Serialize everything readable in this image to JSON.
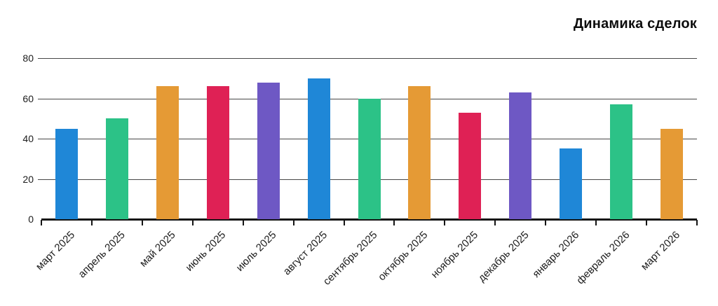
{
  "header": {
    "title": "Динамика сделок"
  },
  "chart_data": {
    "type": "bar",
    "title": "Динамика сделок",
    "categories": [
      "март 2025",
      "апрель 2025",
      "май 2025",
      "июнь 2025",
      "июль 2025",
      "август 2025",
      "сентябрь 2025",
      "октябрь 2025",
      "ноябрь 2025",
      "декабрь 2025",
      "январь 2026",
      "февраль 2026",
      "март 2026"
    ],
    "values": [
      45,
      50,
      66,
      66,
      68,
      70,
      60,
      66,
      53,
      63,
      35,
      57,
      45
    ],
    "xlabel": "",
    "ylabel": "",
    "ylim": [
      0,
      80
    ],
    "yticks": [
      0,
      20,
      40,
      60,
      80
    ],
    "grid": "horizontal-on",
    "legend": "none",
    "bar_palette": [
      "#1f87d7",
      "#2cc287",
      "#e59a35",
      "#df2155",
      "#6e58c4"
    ]
  },
  "colors": {
    "grid_color": "#474747",
    "axis_color": "#141414",
    "text_color": "#1c1c1c",
    "background": "#ffffff"
  }
}
